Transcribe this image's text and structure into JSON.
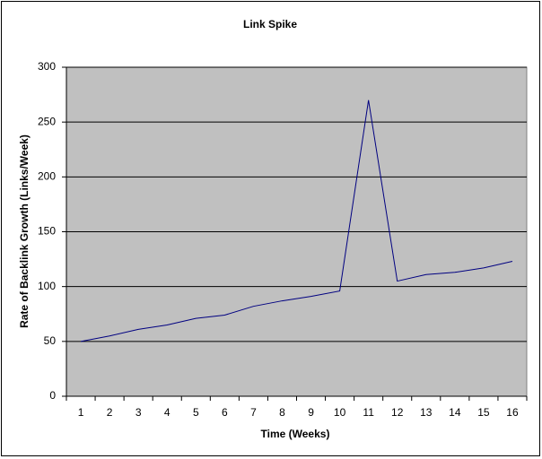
{
  "chart_data": {
    "type": "line",
    "title": "Link Spike",
    "x_label": "Time (Weeks)",
    "y_label": "Rate of Backlink Growth (Links/Week)",
    "categories": [
      "1",
      "2",
      "3",
      "4",
      "5",
      "6",
      "7",
      "8",
      "9",
      "10",
      "11",
      "12",
      "13",
      "14",
      "15",
      "16"
    ],
    "values": [
      50,
      55,
      61,
      65,
      71,
      74,
      82,
      87,
      91,
      96,
      270,
      105,
      111,
      113,
      117,
      123
    ],
    "color": "#000080",
    "plot_background": "#c0c0c0",
    "ylim": [
      0,
      300
    ],
    "yticks": [
      0,
      50,
      100,
      150,
      200,
      250,
      300
    ],
    "grid": true
  }
}
